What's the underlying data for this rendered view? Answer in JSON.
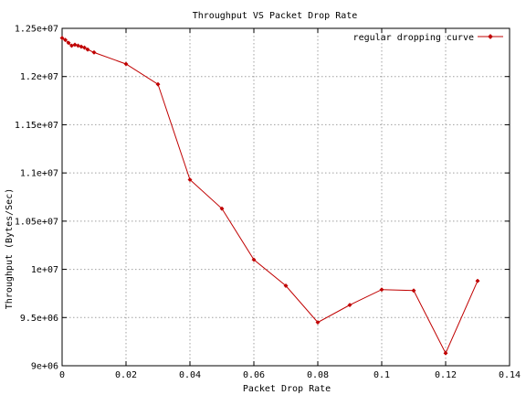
{
  "chart_data": {
    "type": "line",
    "title": "Throughput VS Packet Drop Rate",
    "xlabel": "Packet Drop Rate",
    "ylabel": "Throughput (Bytes/Sec)",
    "xlim": [
      0,
      0.14
    ],
    "ylim": [
      9000000,
      12500000
    ],
    "x_ticks": [
      {
        "value": 0,
        "label": "0"
      },
      {
        "value": 0.02,
        "label": "0.02"
      },
      {
        "value": 0.04,
        "label": "0.04"
      },
      {
        "value": 0.06,
        "label": "0.06"
      },
      {
        "value": 0.08,
        "label": "0.08"
      },
      {
        "value": 0.1,
        "label": "0.1"
      },
      {
        "value": 0.12,
        "label": "0.12"
      },
      {
        "value": 0.14,
        "label": "0.14"
      }
    ],
    "y_ticks": [
      {
        "value": 9000000,
        "label": "9e+06"
      },
      {
        "value": 9500000,
        "label": "9.5e+06"
      },
      {
        "value": 10000000,
        "label": "1e+07"
      },
      {
        "value": 10500000,
        "label": "1.05e+07"
      },
      {
        "value": 11000000,
        "label": "1.1e+07"
      },
      {
        "value": 11500000,
        "label": "1.15e+07"
      },
      {
        "value": 12000000,
        "label": "1.2e+07"
      },
      {
        "value": 12500000,
        "label": "1.25e+07"
      }
    ],
    "grid": true,
    "legend_position": "top-right",
    "series": [
      {
        "name": "regular dropping curve",
        "color": "#c00000",
        "marker": "diamond",
        "points": [
          [
            0.0,
            12400000
          ],
          [
            0.001,
            12380000
          ],
          [
            0.002,
            12350000
          ],
          [
            0.003,
            12320000
          ],
          [
            0.004,
            12330000
          ],
          [
            0.005,
            12320000
          ],
          [
            0.006,
            12310000
          ],
          [
            0.007,
            12300000
          ],
          [
            0.008,
            12280000
          ],
          [
            0.01,
            12250000
          ],
          [
            0.02,
            12130000
          ],
          [
            0.03,
            11920000
          ],
          [
            0.04,
            10930000
          ],
          [
            0.05,
            10630000
          ],
          [
            0.06,
            10100000
          ],
          [
            0.07,
            9830000
          ],
          [
            0.08,
            9450000
          ],
          [
            0.09,
            9630000
          ],
          [
            0.1,
            9790000
          ],
          [
            0.11,
            9780000
          ],
          [
            0.12,
            9130000
          ],
          [
            0.13,
            9880000
          ]
        ]
      }
    ]
  }
}
